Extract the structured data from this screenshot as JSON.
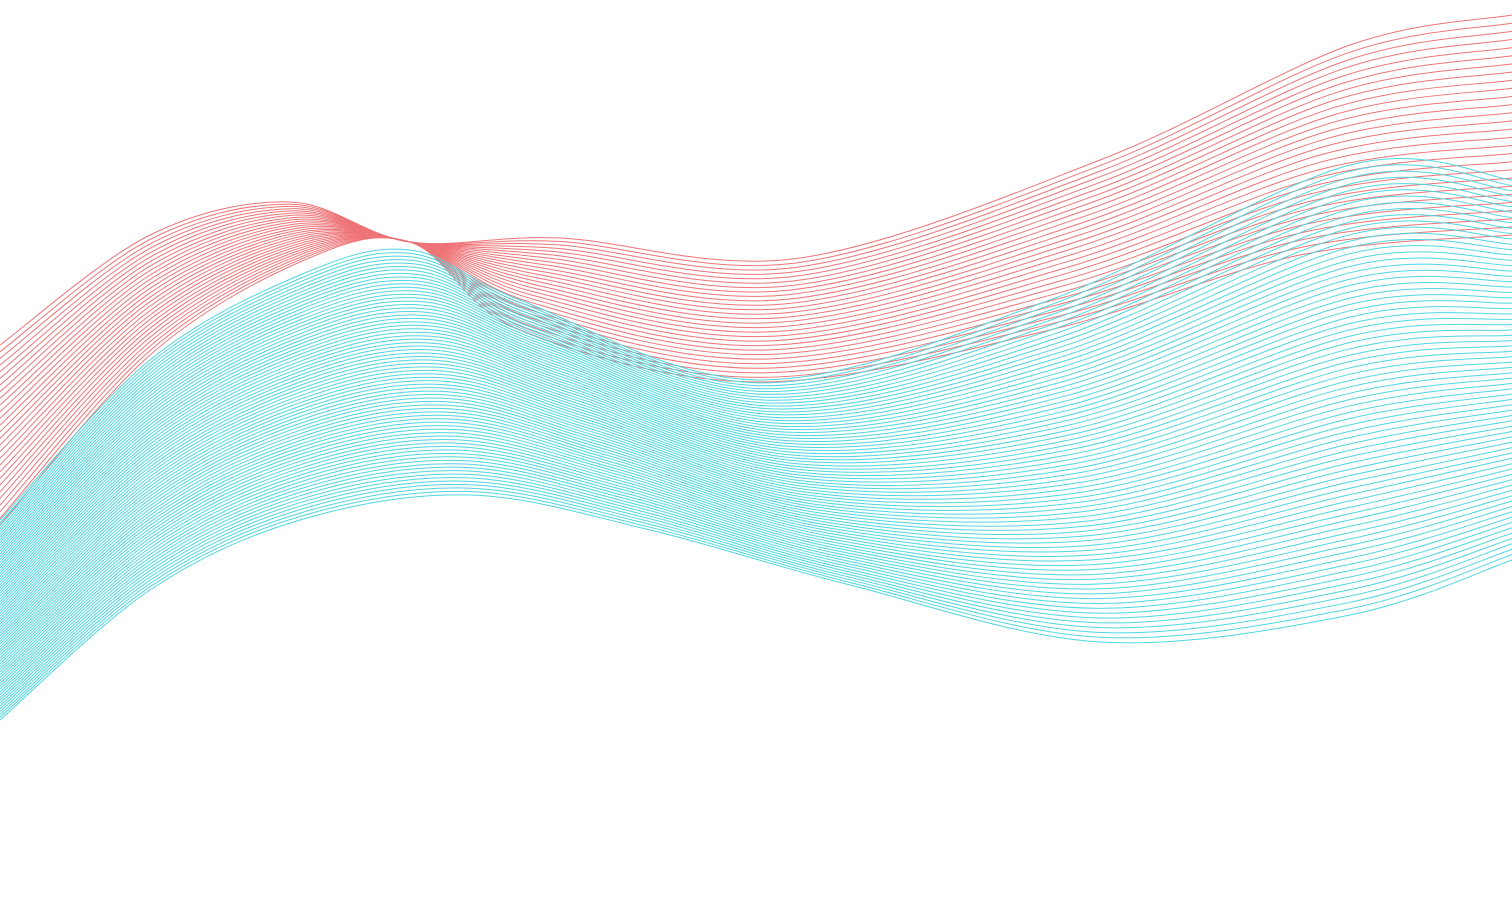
{
  "background_color": "#ffffff",
  "artwork": {
    "description_type": "decorative-line-waves",
    "bands": [
      {
        "name": "red-band",
        "color": "#ee7477",
        "line_count": 28
      },
      {
        "name": "cyan-band",
        "color": "#4fd7df",
        "line_count": 72
      }
    ]
  }
}
